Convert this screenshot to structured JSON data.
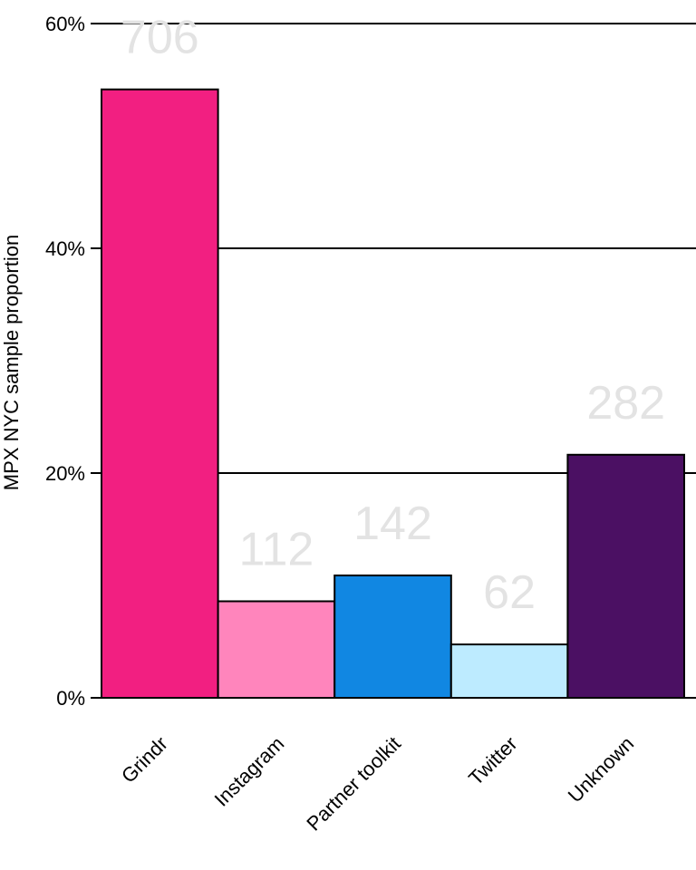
{
  "chart_data": {
    "type": "bar",
    "title": "",
    "xlabel": "",
    "ylabel": "MPX NYC sample proportion",
    "ylim": [
      0,
      0.6
    ],
    "yticks": [
      0,
      0.2,
      0.4,
      0.6
    ],
    "ytick_labels": [
      "0%",
      "20%",
      "40%",
      "60%"
    ],
    "grid": "horizontal major",
    "categories": [
      "Grindr",
      "Instagram",
      "Partner toolkit",
      "Twitter",
      "Unknown"
    ],
    "counts": [
      706,
      112,
      142,
      62,
      282
    ],
    "count_labels": [
      "706",
      "112",
      "142",
      "62",
      "282"
    ],
    "values": [
      0.5414,
      0.0859,
      0.1089,
      0.0475,
      0.2163
    ],
    "colors": [
      "#F21F81",
      "#FF85BC",
      "#1187E2",
      "#BDEBFF",
      "#4B1063"
    ],
    "count_label_color": "#E3E3E3"
  }
}
